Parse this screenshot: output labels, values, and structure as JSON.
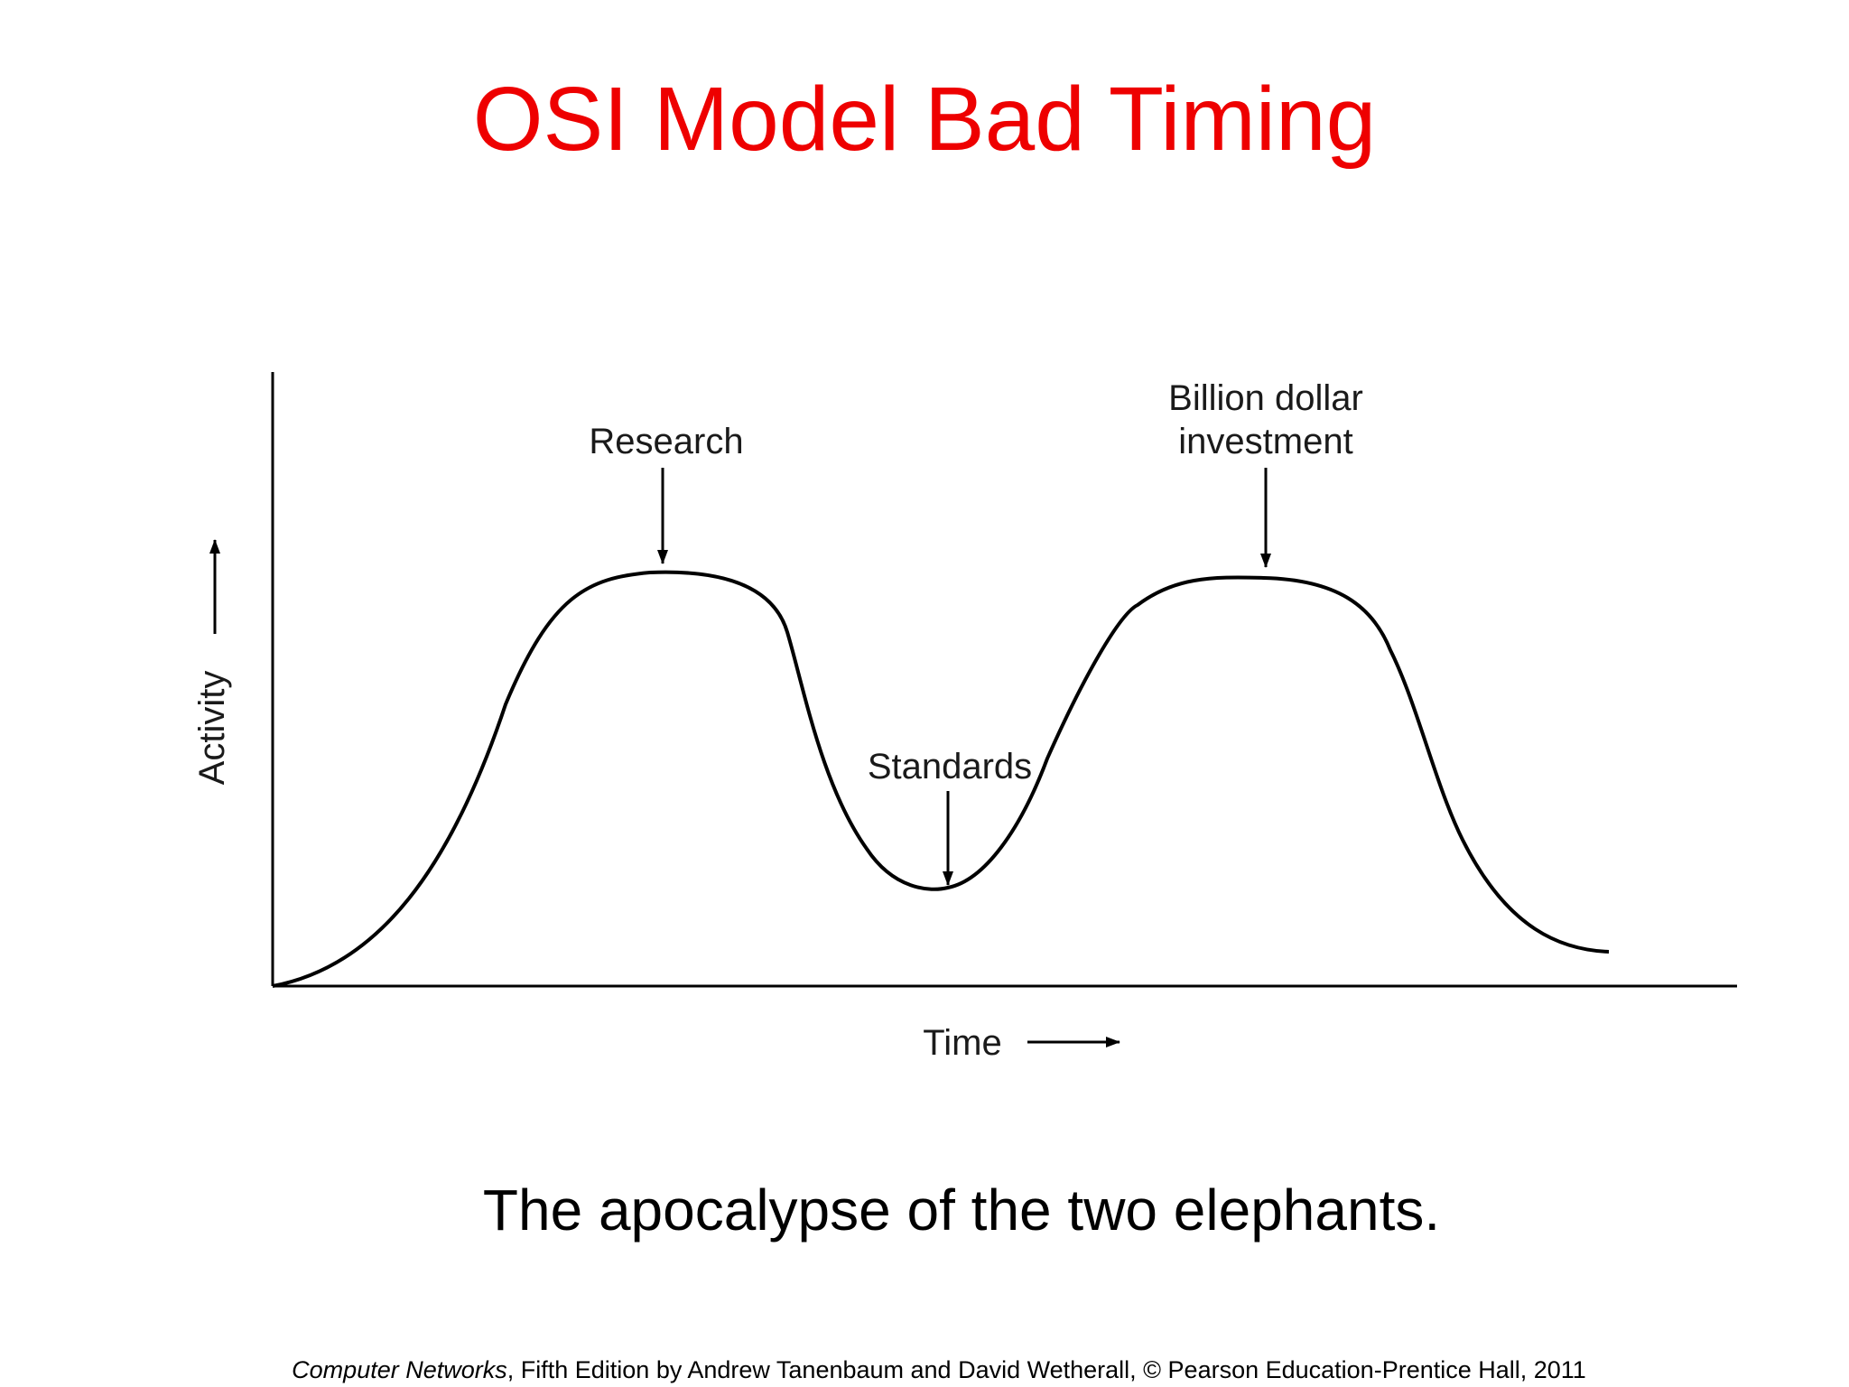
{
  "slide": {
    "title": "OSI Model Bad Timing",
    "caption": "The apocalypse of the two elephants.",
    "credit": {
      "book": "Computer Networks",
      "rest": ", Fifth Edition by Andrew Tanenbaum and David Wetherall, © Pearson Education-Prentice Hall, 2011"
    }
  },
  "diagram": {
    "y_axis_label": "Activity",
    "x_axis_label": "Time",
    "annotations": {
      "research": "Research",
      "standards": "Standards",
      "investment_line1": "Billion dollar",
      "investment_line2": "investment"
    }
  },
  "colors": {
    "title": "#ee0000",
    "ink": "#000000"
  }
}
